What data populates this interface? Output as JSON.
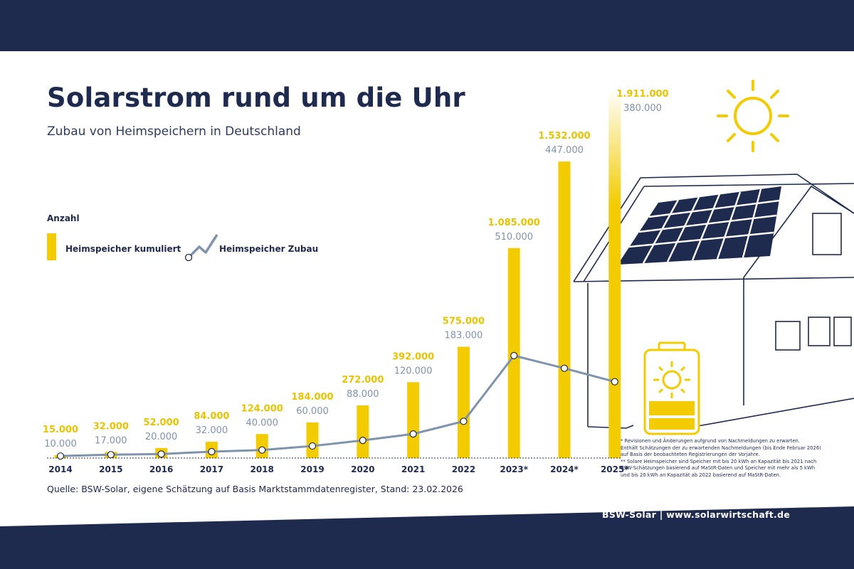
{
  "colors": {
    "frame": "#1f2a4f",
    "bar": "#f2cb00",
    "line": "#7f93ad",
    "cumulative_label": "#e8c400",
    "annual_label": "#7f93ad",
    "text_dark": "#1f2a4f"
  },
  "header": {
    "title": "Solarstrom rund um die Uhr",
    "subtitle": "Zubau von Heimspeichern in Deutschland"
  },
  "legend": {
    "heading": "Anzahl",
    "bar_label": "Heimspeicher kumuliert",
    "line_label": "Heimspeicher Zubau"
  },
  "chart_data": {
    "type": "bar",
    "categories": [
      "2014",
      "2015",
      "2016",
      "2017",
      "2018",
      "2019",
      "2020",
      "2021",
      "2022",
      "2023*",
      "2024*",
      "2025*"
    ],
    "series": [
      {
        "name": "Heimspeicher kumuliert",
        "type": "bar",
        "values": [
          15000,
          32000,
          52000,
          84000,
          124000,
          184000,
          272000,
          392000,
          575000,
          1085000,
          1532000,
          1911000
        ],
        "labels": [
          "15.000",
          "32.000",
          "52.000",
          "84.000",
          "124.000",
          "184.000",
          "272.000",
          "392.000",
          "575.000",
          "1.085.000",
          "1.532.000",
          "1.911.000"
        ]
      },
      {
        "name": "Heimspeicher Zubau",
        "type": "line",
        "values": [
          10000,
          17000,
          20000,
          32000,
          40000,
          60000,
          88000,
          120000,
          183000,
          510000,
          447000,
          380000
        ],
        "labels": [
          "10.000",
          "17.000",
          "20.000",
          "32.000",
          "40.000",
          "60.000",
          "88.000",
          "120.000",
          "183.000",
          "510.000",
          "447.000",
          "380.000"
        ]
      }
    ],
    "title": "Solarstrom rund um die Uhr",
    "subtitle": "Zubau von Heimspeichern in Deutschland",
    "ylabel": "Anzahl",
    "legend_position": "top-left",
    "grid": false
  },
  "source": "Quelle: BSW-Solar, eigene Schätzung auf Basis Marktstammdatenregister, Stand: 23.02.2026",
  "footnotes": [
    "* Revisionen und Änderungen aufgrund von Nachmeldungen zu erwarten.",
    "Enthält Schätzungen der zu erwartenden Nachmeldungen (bis Ende Februar 2026)",
    "auf Basis der beobachteten Registrierungen der Vorjahre.",
    "** Solare Heimspeicher sind Speicher mit bis 20 kWh an Kapazität bis 2021 nach",
    "BSW-Schätzungen basierend auf MaStR-Daten und Speicher mit mehr als 5 kWh",
    "und bis 20 kWh an Kapazität ab 2022 basierend auf MaStR-Daten."
  ],
  "brand": "BSW-Solar | www.solarwirtschaft.de",
  "icons": [
    "sun-icon",
    "house-with-solar-panels-illustration",
    "battery-sun-icon"
  ]
}
